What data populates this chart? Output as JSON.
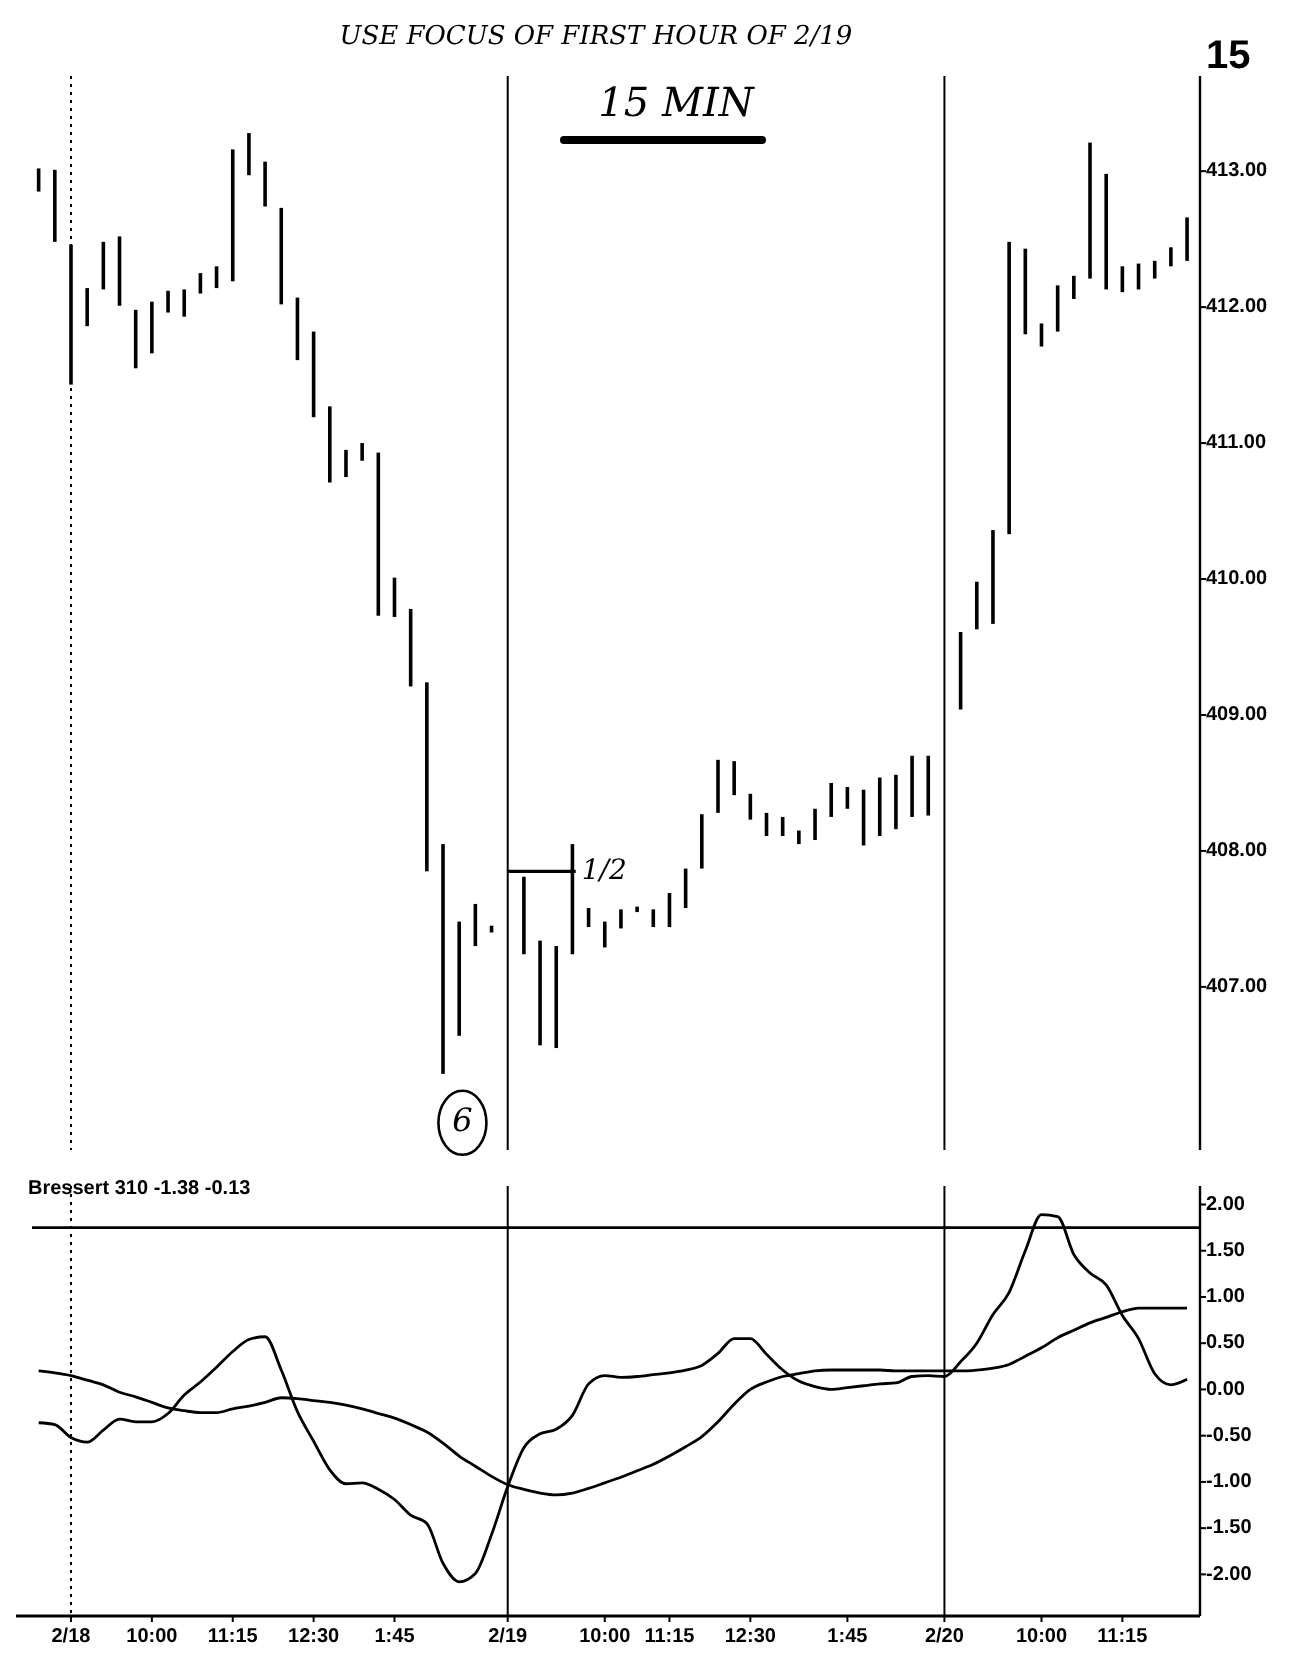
{
  "chart_data": [
    {
      "type": "bar",
      "title": "15 MIN",
      "annotations": [
        "USE FOCUS OF FIRST HOUR OF 2/19",
        "15",
        {
          "text": "1/2",
          "x": "2/19",
          "y": 407.85
        },
        {
          "text": "6",
          "y": 406.0
        }
      ],
      "categories": [
        null,
        null,
        "2/18",
        null,
        null,
        null,
        null,
        "10:00",
        null,
        null,
        null,
        null,
        "11:15",
        null,
        null,
        null,
        null,
        "12:30",
        null,
        null,
        null,
        null,
        "1:45",
        null,
        null,
        null,
        null,
        null,
        null,
        "2/19",
        null,
        null,
        null,
        null,
        null,
        "10:00",
        null,
        null,
        null,
        "11:15",
        null,
        null,
        null,
        null,
        "12:30",
        null,
        null,
        null,
        null,
        null,
        "1:45",
        null,
        null,
        null,
        null,
        null,
        "2/20",
        null,
        null,
        null,
        null,
        null,
        "10:00",
        null,
        null,
        null,
        null,
        "11:15",
        null,
        null,
        null,
        null
      ],
      "base": [
        412.85,
        412.48,
        411.43,
        411.86,
        412.13,
        412.01,
        411.55,
        411.66,
        411.96,
        411.93,
        412.1,
        412.14,
        412.19,
        412.97,
        412.74,
        412.02,
        411.61,
        411.19,
        410.71,
        410.75,
        410.87,
        409.73,
        409.72,
        409.21,
        407.85,
        406.36,
        406.64,
        407.3,
        407.4,
        null,
        407.24,
        406.57,
        406.55,
        407.24,
        407.44,
        407.29,
        407.43,
        407.55,
        407.44,
        407.44,
        407.58,
        407.87,
        408.28,
        408.41,
        408.23,
        408.11,
        408.11,
        408.05,
        408.08,
        408.25,
        408.31,
        408.04,
        408.11,
        408.16,
        408.25,
        408.26,
        null,
        409.04,
        409.63,
        409.67,
        410.33,
        411.8,
        411.71,
        411.82,
        412.06,
        412.21,
        412.13,
        412.11,
        412.13,
        412.21,
        412.3,
        412.34
      ],
      "values": [
        0.17,
        0.53,
        1.03,
        0.28,
        0.35,
        0.51,
        0.43,
        0.38,
        0.16,
        0.2,
        0.15,
        0.16,
        0.97,
        0.31,
        0.33,
        0.71,
        0.46,
        0.63,
        0.56,
        0.2,
        0.13,
        1.2,
        0.29,
        0.57,
        1.39,
        1.69,
        0.84,
        0.31,
        0.05,
        null,
        0.57,
        0.77,
        0.75,
        0.81,
        0.14,
        0.19,
        0.14,
        0.04,
        0.13,
        0.25,
        0.29,
        0.4,
        0.39,
        0.25,
        0.19,
        0.17,
        0.14,
        0.1,
        0.23,
        0.25,
        0.16,
        0.41,
        0.43,
        0.4,
        0.45,
        0.44,
        null,
        0.57,
        0.35,
        0.69,
        2.15,
        0.63,
        0.17,
        0.34,
        0.17,
        1.0,
        0.85,
        0.19,
        0.19,
        0.13,
        0.14,
        0.32
      ],
      "color": "#000000",
      "ylim": [
        405.8,
        413.7
      ],
      "yticks": [
        {
          "value": 407,
          "label": "407.00"
        },
        {
          "value": 408,
          "label": "408.00"
        },
        {
          "value": 409,
          "label": "409.00"
        },
        {
          "value": 410,
          "label": "410.00"
        },
        {
          "value": 411,
          "label": "411.00"
        },
        {
          "value": 412,
          "label": "412.00"
        },
        {
          "value": 413,
          "label": "413.00"
        }
      ],
      "tick_labels": "y",
      "ref_lines": [
        {
          "axis": "x",
          "value": "2/18",
          "line_style": "dotted"
        },
        {
          "axis": "x",
          "value": "2/19"
        },
        {
          "axis": "x",
          "value": "2/20"
        }
      ]
    },
    {
      "type": "line",
      "annotations": [
        "Bressert 310 -1.38 -0.13"
      ],
      "categories": [
        null,
        null,
        "2/18",
        null,
        null,
        null,
        null,
        "10:00",
        null,
        null,
        null,
        null,
        "11:15",
        null,
        null,
        null,
        null,
        "12:30",
        null,
        null,
        null,
        null,
        "1:45",
        null,
        null,
        null,
        null,
        null,
        null,
        "2/19",
        null,
        null,
        null,
        null,
        null,
        "10:00",
        null,
        null,
        null,
        "11:15",
        null,
        null,
        null,
        null,
        "12:30",
        null,
        null,
        null,
        null,
        null,
        "1:45",
        null,
        null,
        null,
        null,
        null,
        "2/20",
        null,
        null,
        null,
        null,
        null,
        "10:00",
        null,
        null,
        null,
        null,
        "11:15",
        null,
        null,
        null,
        null
      ],
      "series": [
        {
          "color": "#000000",
          "values": [
            -0.36,
            -0.38,
            -0.52,
            -0.57,
            -0.44,
            -0.32,
            -0.35,
            -0.35,
            -0.26,
            -0.06,
            0.08,
            0.24,
            0.41,
            0.54,
            0.57,
            0.21,
            -0.24,
            -0.56,
            -0.87,
            -1.02,
            -1.01,
            -1.08,
            -1.19,
            -1.36,
            -1.45,
            -1.88,
            -2.08,
            -1.99,
            -1.57,
            -1.05,
            -0.63,
            -0.48,
            -0.43,
            -0.28,
            0.06,
            0.15,
            0.13,
            0.14,
            0.16,
            0.18,
            0.21,
            0.26,
            0.39,
            0.55,
            0.55,
            0.38,
            0.21,
            0.09,
            0.03,
            0.0,
            0.02,
            0.04,
            0.06,
            0.07,
            0.14,
            0.15,
            0.14,
            0.3,
            0.5,
            0.81,
            1.05,
            1.5,
            1.89,
            1.87,
            1.46,
            1.26,
            1.13,
            0.8,
            0.55,
            0.17,
            0.05,
            0.11
          ]
        },
        {
          "color": "#000000",
          "values": [
            0.2,
            0.18,
            0.15,
            0.1,
            0.05,
            -0.03,
            -0.08,
            -0.14,
            -0.2,
            -0.23,
            -0.25,
            -0.25,
            -0.21,
            -0.18,
            -0.14,
            -0.09,
            -0.1,
            -0.12,
            -0.14,
            -0.17,
            -0.21,
            -0.26,
            -0.31,
            -0.38,
            -0.46,
            -0.58,
            -0.72,
            -0.83,
            -0.94,
            -1.03,
            -1.08,
            -1.12,
            -1.14,
            -1.12,
            -1.07,
            -1.01,
            -0.95,
            -0.88,
            -0.81,
            -0.72,
            -0.62,
            -0.51,
            -0.35,
            -0.16,
            0.0,
            0.08,
            0.14,
            0.17,
            0.2,
            0.21,
            0.21,
            0.21,
            0.21,
            0.2,
            0.2,
            0.2,
            0.2,
            0.2,
            0.21,
            0.23,
            0.27,
            0.36,
            0.45,
            0.56,
            0.64,
            0.72,
            0.78,
            0.84,
            0.88,
            0.88,
            0.88,
            0.88
          ]
        }
      ],
      "ylim": [
        -2.45,
        2.2
      ],
      "yticks": [
        {
          "value": 2,
          "label": "2.00"
        },
        {
          "value": 1.5,
          "label": "1.50"
        },
        {
          "value": 1,
          "label": "1.00"
        },
        {
          "value": 0.5,
          "label": "0.50"
        },
        {
          "value": 0,
          "label": "0.00"
        },
        {
          "value": -0.5,
          "label": "-0.50"
        },
        {
          "value": -1,
          "label": "-1.00"
        },
        {
          "value": -1.5,
          "label": "-1.50"
        },
        {
          "value": -2,
          "label": "-2.00"
        }
      ],
      "ref_lines": [
        {
          "axis": "y",
          "value": 1.75
        },
        {
          "axis": "x",
          "value": "2/18",
          "line_style": "dotted"
        },
        {
          "axis": "x",
          "value": "2/19"
        },
        {
          "axis": "x",
          "value": "2/20"
        }
      ]
    }
  ]
}
